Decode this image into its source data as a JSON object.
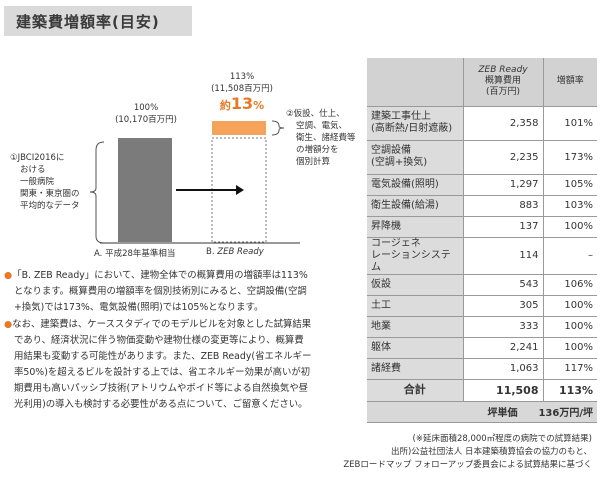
{
  "title": "建築費増額率(目安)",
  "chart": {
    "bar_a": {
      "pct": "100%",
      "amount": "(10,170百万円)",
      "axis_label": "A. 平成28年基準相当",
      "value": 100
    },
    "bar_b": {
      "pct": "113%",
      "amount": "(11,508百万円)",
      "approx_prefix": "約",
      "approx_value": "13",
      "approx_suffix": "%",
      "axis_prefix": "B.",
      "axis_label": "ZEB Ready",
      "value": 113
    },
    "left_note": [
      "①JBCI2016に",
      "おける",
      "一般病院",
      "関東・東京圏の",
      "平均的なデータ"
    ],
    "right_note": [
      "②仮設、仕上、",
      "空調、電気、",
      "衛生、諸経費等",
      "の増額分を",
      "個別計算"
    ],
    "colors": {
      "bar_a": "#7b7b7b",
      "increase": "#f5a25a",
      "accent": "#e87a25"
    }
  },
  "table": {
    "header": {
      "col1_line1": "ZEB Ready",
      "col1_line2": "概算費用",
      "col1_line3": "(百万円)",
      "col2": "増額率"
    },
    "rows": [
      {
        "item_l1": "建築工事仕上",
        "item_l2": "(高断熱/日射遮蔽)",
        "cost": "2,358",
        "rate": "101%"
      },
      {
        "item_l1": "空調設備",
        "item_l2": "(空調+換気)",
        "cost": "2,235",
        "rate": "173%"
      },
      {
        "item_l1": "電気設備(照明)",
        "item_l2": "",
        "cost": "1,297",
        "rate": "105%"
      },
      {
        "item_l1": "衛生設備(給湯)",
        "item_l2": "",
        "cost": "883",
        "rate": "103%"
      },
      {
        "item_l1": "昇降機",
        "item_l2": "",
        "cost": "137",
        "rate": "100%"
      },
      {
        "item_l1": "コージェネ",
        "item_l2": "レーションシステム",
        "cost": "114",
        "rate": "–"
      },
      {
        "item_l1": "仮設",
        "item_l2": "",
        "cost": "543",
        "rate": "106%"
      },
      {
        "item_l1": "土工",
        "item_l2": "",
        "cost": "305",
        "rate": "100%"
      },
      {
        "item_l1": "地業",
        "item_l2": "",
        "cost": "333",
        "rate": "100%"
      },
      {
        "item_l1": "躯体",
        "item_l2": "",
        "cost": "2,241",
        "rate": "100%"
      },
      {
        "item_l1": "諸経費",
        "item_l2": "",
        "cost": "1,063",
        "rate": "117%"
      }
    ],
    "total": {
      "label": "合計",
      "cost": "11,508",
      "rate": "113%"
    },
    "unit_price": {
      "label": "坪単価",
      "value": "136万円/坪"
    }
  },
  "paragraphs": [
    {
      "bullet": "●",
      "lines": [
        "「B. ZEB Ready」において、建物全体での概算費用の増額率は113%",
        "となります。概算費用の増額率を個別技術別にみると、空調設備(空調",
        "+換気)では173%、電気設備(照明)では105%となります。"
      ]
    },
    {
      "bullet": "●",
      "lines": [
        "なお、建築費は、ケーススタディでのモデルビルを対象とした試算結果",
        "であり、経済状況に伴う物価変動や建物仕様の変更等により、概算費",
        "用結果も変動する可能性があります。また、ZEB Ready(省エネルギー",
        "率50%)を超えるビルを設計する上では、省エネルギー効果が高いが初",
        "期費用も高いパッシブ技術(アトリウムやボイド等による自然換気や昼",
        "光利用)の導入も検討する必要性がある点について、ご留意ください。"
      ]
    }
  ],
  "footnotes": {
    "note1": "(※延床面積28,000㎡程度の病院での試算結果)",
    "note2": "出所)公益社団法人 日本建築積算協会の協力のもと、",
    "note3": "ZEBロードマップ フォローアップ委員会による試算結果に基づく"
  }
}
